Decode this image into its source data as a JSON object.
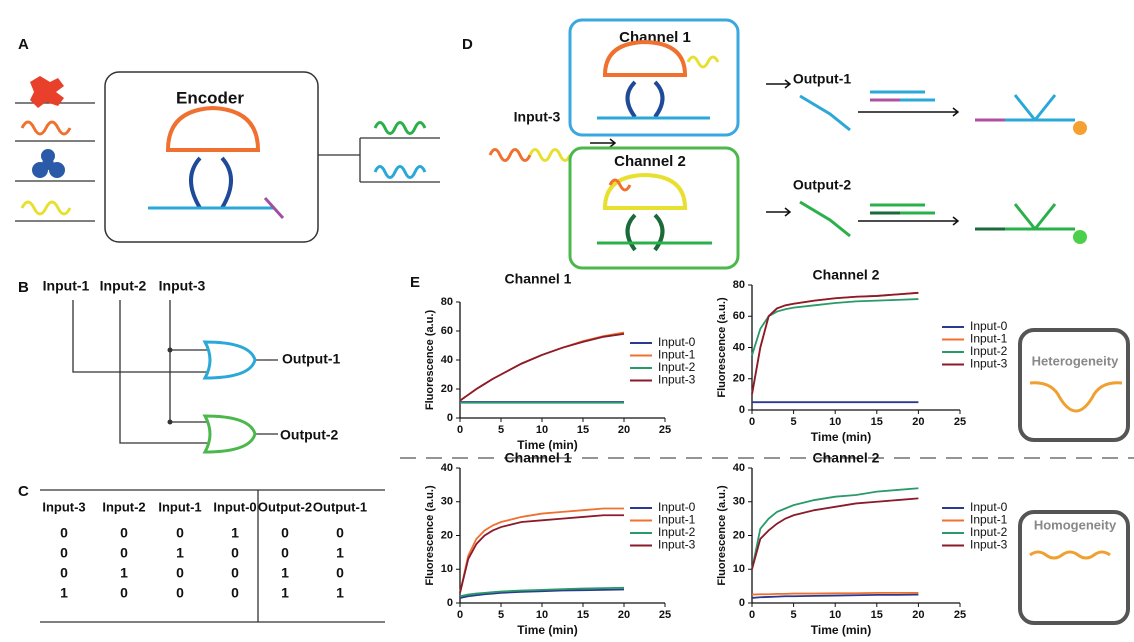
{
  "panels": {
    "a": "A",
    "b": "B",
    "c": "C",
    "d": "D",
    "e": "E"
  },
  "encoder": {
    "title": "Encoder"
  },
  "circuit": {
    "inputs": [
      "Input-1",
      "Input-2",
      "Input-3"
    ],
    "outputs": [
      "Output-1",
      "Output-2"
    ]
  },
  "truth_table": {
    "header": [
      "Input-3",
      "Input-2",
      "Input-1",
      "Input-0",
      "Output-2",
      "Output-1"
    ],
    "rows": [
      [
        0,
        0,
        0,
        1,
        0,
        0
      ],
      [
        0,
        0,
        1,
        0,
        0,
        1
      ],
      [
        0,
        1,
        0,
        0,
        1,
        0
      ],
      [
        1,
        0,
        0,
        0,
        1,
        1
      ]
    ]
  },
  "diagram": {
    "input": "Input-3",
    "channels": [
      "Channel 1",
      "Channel 2"
    ],
    "outputs": [
      "Output-1",
      "Output-2"
    ]
  },
  "states": [
    "Heterogeneity",
    "Homogeneity"
  ],
  "chart_data": [
    {
      "type": "line",
      "title": "Channel 1",
      "x_label": "Time (min)",
      "y_label": "Fluorescence (a.u.)",
      "legend": "right",
      "x": [
        0,
        1,
        2,
        3,
        4,
        5,
        7.5,
        10,
        12.5,
        15,
        17.5,
        20
      ],
      "xlim": [
        0,
        25
      ],
      "xticks": [
        0,
        5,
        10,
        15,
        20,
        25
      ],
      "ylim": [
        0,
        80
      ],
      "yticks": [
        0,
        20,
        40,
        60,
        80
      ],
      "series": [
        {
          "name": "Input-0",
          "color": "#2b3a8f",
          "values": [
            11,
            11,
            11,
            11,
            11,
            11,
            11,
            11,
            11,
            11,
            11,
            11
          ]
        },
        {
          "name": "Input-1",
          "color": "#f07030",
          "values": [
            12,
            16,
            20,
            23.5,
            27,
            30,
            37.5,
            43.5,
            48.5,
            53,
            56.5,
            59
          ]
        },
        {
          "name": "Input-2",
          "color": "#2a9a6a",
          "values": [
            10.5,
            10.5,
            10.5,
            10.5,
            10.5,
            10.5,
            10.5,
            10.5,
            10.5,
            10.5,
            10.5,
            10.5
          ]
        },
        {
          "name": "Input-3",
          "color": "#8b1a2a",
          "values": [
            12,
            16,
            20,
            23.5,
            27,
            30,
            37.5,
            43.5,
            48.5,
            52.5,
            56,
            58
          ]
        }
      ]
    },
    {
      "type": "line",
      "title": "Channel 2",
      "x_label": "Time (min)",
      "y_label": "Fluorescence (a.u.)",
      "legend": "right",
      "x": [
        0,
        1,
        2,
        3,
        4,
        5,
        7.5,
        10,
        12.5,
        15,
        17.5,
        20
      ],
      "xlim": [
        0,
        25
      ],
      "xticks": [
        0,
        5,
        10,
        15,
        20,
        25
      ],
      "ylim": [
        0,
        80
      ],
      "yticks": [
        0,
        20,
        40,
        60,
        80
      ],
      "series": [
        {
          "name": "Input-0",
          "color": "#2b3a8f",
          "values": [
            5,
            5,
            5,
            5,
            5,
            5,
            5,
            5,
            5,
            5,
            5,
            5
          ]
        },
        {
          "name": "Input-1",
          "color": "#f07030",
          "values": [
            10,
            40,
            60,
            65,
            67,
            68,
            70,
            71.5,
            72.5,
            73,
            74,
            75
          ]
        },
        {
          "name": "Input-2",
          "color": "#2a9a6a",
          "values": [
            35,
            52,
            60,
            63,
            64.5,
            65.5,
            67,
            68.5,
            69.5,
            70,
            70.5,
            71
          ]
        },
        {
          "name": "Input-3",
          "color": "#8b1a2a",
          "values": [
            10,
            40,
            60,
            65,
            67,
            68,
            70,
            71.5,
            72.5,
            73,
            74,
            75
          ]
        }
      ]
    },
    {
      "type": "line",
      "title": "Channel 1",
      "x_label": "Time (min)",
      "y_label": "Fluorescence (a.u.)",
      "legend": "right",
      "x": [
        0,
        1,
        2,
        3,
        4,
        5,
        7.5,
        10,
        12.5,
        15,
        17.5,
        20
      ],
      "xlim": [
        0,
        25
      ],
      "xticks": [
        0,
        5,
        10,
        15,
        20,
        25
      ],
      "ylim": [
        0,
        40
      ],
      "yticks": [
        0,
        10,
        20,
        30,
        40
      ],
      "series": [
        {
          "name": "Input-0",
          "color": "#2b3a8f",
          "values": [
            1.5,
            2,
            2.3,
            2.6,
            2.8,
            3,
            3.3,
            3.5,
            3.7,
            3.8,
            3.9,
            4
          ]
        },
        {
          "name": "Input-1",
          "color": "#f07030",
          "values": [
            3,
            14,
            19,
            21.5,
            23,
            24,
            25.5,
            26.5,
            27,
            27.5,
            28,
            28
          ]
        },
        {
          "name": "Input-2",
          "color": "#2a9a6a",
          "values": [
            2,
            2.5,
            2.8,
            3,
            3.2,
            3.4,
            3.7,
            3.9,
            4.1,
            4.3,
            4.4,
            4.5
          ]
        },
        {
          "name": "Input-3",
          "color": "#8b1a2a",
          "values": [
            3,
            13,
            17.5,
            20,
            21.5,
            22.5,
            24,
            24.5,
            25,
            25.5,
            26,
            26
          ]
        }
      ]
    },
    {
      "type": "line",
      "title": "Channel 2",
      "x_label": "Time (min)",
      "y_label": "Fluorescence (a.u.)",
      "legend": "right",
      "x": [
        0,
        1,
        2,
        3,
        4,
        5,
        7.5,
        10,
        12.5,
        15,
        17.5,
        20
      ],
      "xlim": [
        0,
        25
      ],
      "xticks": [
        0,
        5,
        10,
        15,
        20,
        25
      ],
      "ylim": [
        0,
        40
      ],
      "yticks": [
        0,
        10,
        20,
        30,
        40
      ],
      "series": [
        {
          "name": "Input-0",
          "color": "#2b3a8f",
          "values": [
            1.5,
            1.7,
            1.8,
            1.9,
            2,
            2,
            2.1,
            2.2,
            2.3,
            2.4,
            2.4,
            2.5
          ]
        },
        {
          "name": "Input-1",
          "color": "#f07030",
          "values": [
            2.5,
            2.6,
            2.6,
            2.7,
            2.7,
            2.8,
            2.8,
            2.9,
            2.9,
            3,
            3,
            3
          ]
        },
        {
          "name": "Input-2",
          "color": "#2a9a6a",
          "values": [
            10,
            22,
            25,
            27,
            28,
            29,
            30.5,
            31.5,
            32,
            33,
            33.5,
            34
          ]
        },
        {
          "name": "Input-3",
          "color": "#8b1a2a",
          "values": [
            10,
            19,
            21.5,
            23.5,
            25,
            26,
            27.5,
            28.5,
            29.5,
            30,
            30.5,
            31
          ]
        }
      ]
    }
  ]
}
